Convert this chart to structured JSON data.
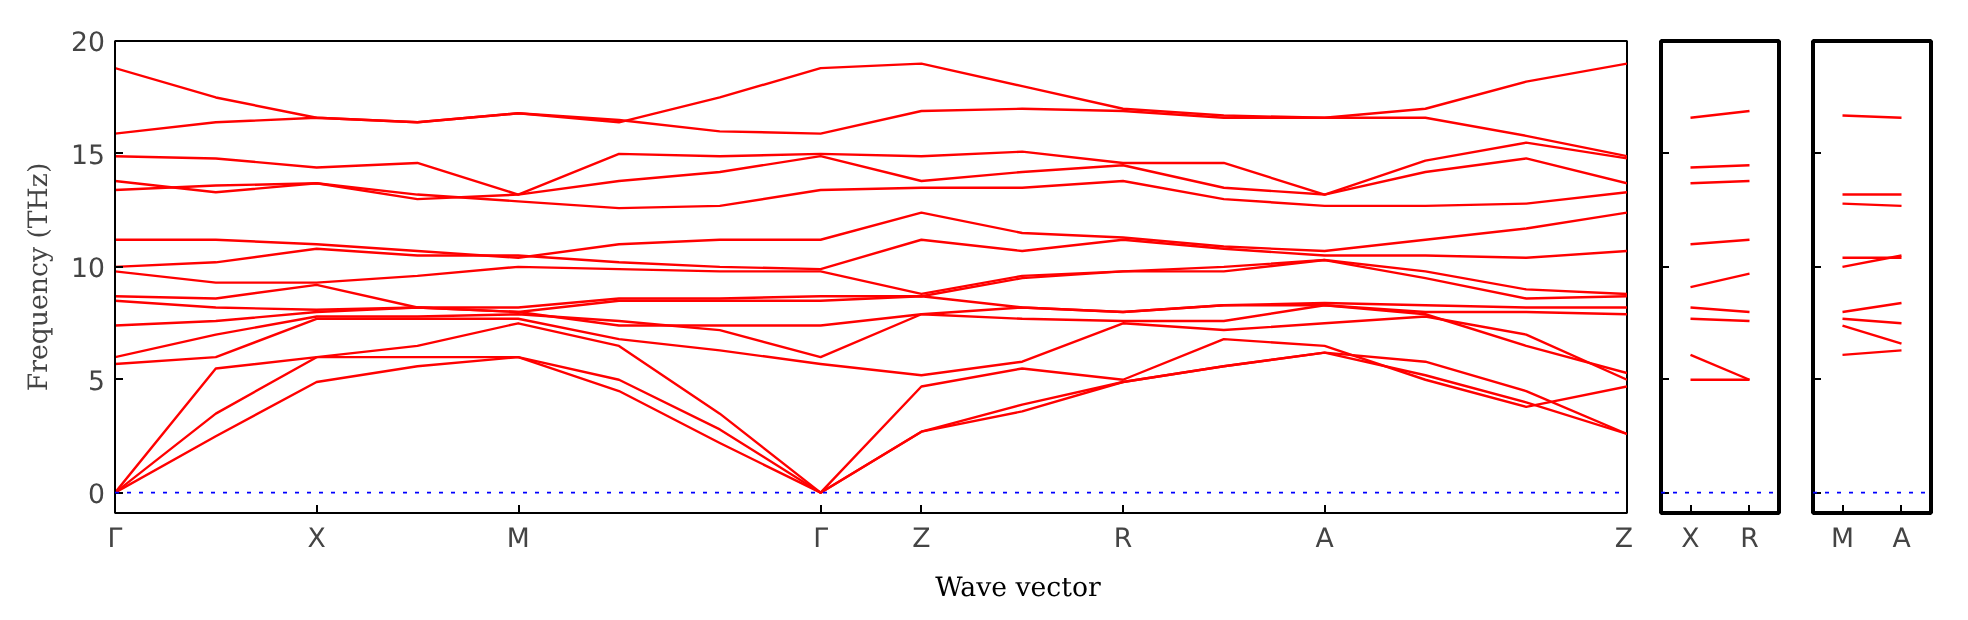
{
  "chart_data": [
    {
      "type": "line",
      "xlabel": "Wave vector",
      "ylabel": "Frequency (THz)",
      "categories": [
        "Γ",
        null,
        "X",
        null,
        "M",
        null,
        null,
        "Γ",
        "Z",
        null,
        "R",
        null,
        "A",
        null,
        null,
        "Z"
      ],
      "ylim": [
        -0.9,
        20
      ],
      "yticks": [
        0,
        5,
        10,
        15,
        20
      ],
      "grid": false,
      "line_style": "solid",
      "ref_lines": [
        {
          "axis": "y",
          "value": 0,
          "color": "#0000ff",
          "line_style": "dotted"
        }
      ],
      "series": [
        {
          "color": "#ff0000",
          "values": [
            0,
            2.5,
            4.9,
            5.6,
            6.0,
            4.5,
            2.2,
            0,
            2.7,
            3.6,
            4.9,
            5.6,
            6.2,
            5.2,
            4.0,
            2.6
          ]
        },
        {
          "color": "#ff0000",
          "values": [
            0,
            3.5,
            6.0,
            6.0,
            6.0,
            5.0,
            2.8,
            0,
            2.7,
            3.9,
            4.9,
            5.6,
            6.2,
            5.8,
            4.5,
            2.6
          ]
        },
        {
          "color": "#ff0000",
          "values": [
            0,
            5.5,
            6.0,
            6.5,
            7.5,
            6.5,
            3.5,
            0,
            4.7,
            5.5,
            5.0,
            6.8,
            6.5,
            5.0,
            3.8,
            4.7
          ]
        },
        {
          "color": "#ff0000",
          "values": [
            5.7,
            6.0,
            7.7,
            7.7,
            7.7,
            6.8,
            6.3,
            5.7,
            5.2,
            5.8,
            7.5,
            7.2,
            7.5,
            7.8,
            7.0,
            5.0
          ]
        },
        {
          "color": "#ff0000",
          "values": [
            6.0,
            7.0,
            7.8,
            7.8,
            7.9,
            7.6,
            7.2,
            6.0,
            7.9,
            7.7,
            7.6,
            7.6,
            8.3,
            7.9,
            6.5,
            5.3
          ]
        },
        {
          "color": "#ff0000",
          "values": [
            7.4,
            7.6,
            8.0,
            8.2,
            8.0,
            7.4,
            7.4,
            7.4,
            7.9,
            8.2,
            8.0,
            8.3,
            8.3,
            8.0,
            8.0,
            7.9
          ]
        },
        {
          "color": "#ff0000",
          "values": [
            8.5,
            8.2,
            8.1,
            8.2,
            8.0,
            8.5,
            8.5,
            8.5,
            8.7,
            8.2,
            8.0,
            8.3,
            8.4,
            8.3,
            8.2,
            8.2
          ]
        },
        {
          "color": "#ff0000",
          "values": [
            8.7,
            8.6,
            9.2,
            8.2,
            8.2,
            8.6,
            8.6,
            8.7,
            8.7,
            9.5,
            9.8,
            9.8,
            10.3,
            9.5,
            8.6,
            8.7
          ]
        },
        {
          "color": "#ff0000",
          "values": [
            9.8,
            9.3,
            9.3,
            9.6,
            10.0,
            9.9,
            9.8,
            9.8,
            8.8,
            9.6,
            9.8,
            10.0,
            10.3,
            9.8,
            9.0,
            8.8
          ]
        },
        {
          "color": "#ff0000",
          "values": [
            10.0,
            10.2,
            10.8,
            10.5,
            10.5,
            10.2,
            10.0,
            9.9,
            11.2,
            10.7,
            11.2,
            10.8,
            10.5,
            10.5,
            10.4,
            10.7
          ]
        },
        {
          "color": "#ff0000",
          "values": [
            11.2,
            11.2,
            11.0,
            10.7,
            10.4,
            11.0,
            11.2,
            11.2,
            12.4,
            11.5,
            11.3,
            10.9,
            10.7,
            11.2,
            11.7,
            12.4
          ]
        },
        {
          "color": "#ff0000",
          "values": [
            13.4,
            13.6,
            13.7,
            13.2,
            12.9,
            12.6,
            12.7,
            13.4,
            13.5,
            13.5,
            13.8,
            13.0,
            12.7,
            12.7,
            12.8,
            13.3
          ]
        },
        {
          "color": "#ff0000",
          "values": [
            13.8,
            13.3,
            13.7,
            13.0,
            13.2,
            13.8,
            14.2,
            14.9,
            13.8,
            14.2,
            14.5,
            13.5,
            13.2,
            14.2,
            14.8,
            13.7
          ]
        },
        {
          "color": "#ff0000",
          "values": [
            14.9,
            14.8,
            14.4,
            14.6,
            13.2,
            15.0,
            14.9,
            15.0,
            14.9,
            15.1,
            14.6,
            14.6,
            13.2,
            14.7,
            15.5,
            14.8
          ]
        },
        {
          "color": "#ff0000",
          "values": [
            15.9,
            16.4,
            16.6,
            16.4,
            16.8,
            16.5,
            16.0,
            15.9,
            16.9,
            17.0,
            16.9,
            16.6,
            16.6,
            16.6,
            15.8,
            14.9
          ]
        },
        {
          "color": "#ff0000",
          "values": [
            18.8,
            17.5,
            16.6,
            16.4,
            16.8,
            16.4,
            17.5,
            18.8,
            19.0,
            18.0,
            17.0,
            16.7,
            16.6,
            17.0,
            18.2,
            19.0
          ]
        }
      ]
    },
    {
      "type": "line",
      "categories": [
        "X",
        "R"
      ],
      "ylim": [
        -0.9,
        20
      ],
      "yticks": [
        0,
        5,
        10,
        15,
        20
      ],
      "tick_labels": "x",
      "grid": false,
      "line_style": "solid",
      "ref_lines": [
        {
          "axis": "y",
          "value": 0,
          "color": "#0000ff",
          "line_style": "dotted"
        }
      ],
      "series": [
        {
          "color": "#ff0000",
          "values": [
            16.6,
            16.9
          ]
        },
        {
          "color": "#ff0000",
          "values": [
            14.4,
            14.5
          ]
        },
        {
          "color": "#ff0000",
          "values": [
            13.7,
            13.8
          ]
        },
        {
          "color": "#ff0000",
          "values": [
            11.0,
            11.2
          ]
        },
        {
          "color": "#ff0000",
          "values": [
            9.1,
            9.7
          ]
        },
        {
          "color": "#ff0000",
          "values": [
            8.2,
            8.0
          ]
        },
        {
          "color": "#ff0000",
          "values": [
            7.7,
            7.6
          ]
        },
        {
          "color": "#ff0000",
          "values": [
            6.1,
            5.0
          ]
        },
        {
          "color": "#ff0000",
          "values": [
            5.0,
            5.0
          ]
        }
      ]
    },
    {
      "type": "line",
      "categories": [
        "M",
        "A"
      ],
      "ylim": [
        -0.9,
        20
      ],
      "yticks": [
        0,
        5,
        10,
        15,
        20
      ],
      "tick_labels": "x",
      "grid": false,
      "line_style": "solid",
      "ref_lines": [
        {
          "axis": "y",
          "value": 0,
          "color": "#0000ff",
          "line_style": "dotted"
        }
      ],
      "series": [
        {
          "color": "#ff0000",
          "values": [
            16.7,
            16.6
          ]
        },
        {
          "color": "#ff0000",
          "values": [
            13.2,
            13.2
          ]
        },
        {
          "color": "#ff0000",
          "values": [
            12.8,
            12.7
          ]
        },
        {
          "color": "#ff0000",
          "values": [
            10.4,
            10.4
          ]
        },
        {
          "color": "#ff0000",
          "values": [
            10.0,
            10.5
          ]
        },
        {
          "color": "#ff0000",
          "values": [
            8.0,
            8.4
          ]
        },
        {
          "color": "#ff0000",
          "values": [
            7.7,
            7.5
          ]
        },
        {
          "color": "#ff0000",
          "values": [
            7.4,
            6.6
          ]
        },
        {
          "color": "#ff0000",
          "values": [
            6.1,
            6.3
          ]
        }
      ]
    }
  ]
}
